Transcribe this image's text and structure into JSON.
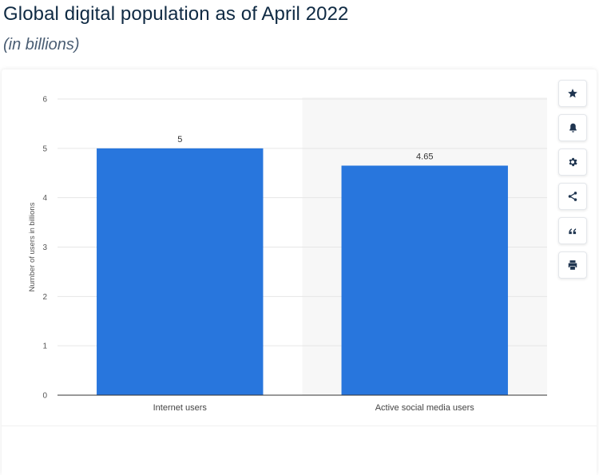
{
  "header": {
    "title": "Global digital population as of April 2022",
    "subtitle": "(in billions)"
  },
  "toolbar": {
    "buttons": [
      {
        "icon": "star-icon"
      },
      {
        "icon": "bell-icon"
      },
      {
        "icon": "gear-icon"
      },
      {
        "icon": "share-icon"
      },
      {
        "icon": "quote-icon"
      },
      {
        "icon": "print-icon"
      }
    ]
  },
  "colors": {
    "bar": "#2876dd",
    "title": "#0f2a43",
    "highlight_band": "#f7f7f7",
    "grid": "#e6e6e6",
    "toolbar_icon": "#1f3550"
  },
  "chart_data": {
    "type": "bar",
    "categories": [
      "Internet users",
      "Active social media users"
    ],
    "values": [
      5,
      4.65
    ],
    "data_labels": [
      "5",
      "4.65"
    ],
    "title": "Global digital population as of April 2022",
    "subtitle": "(in billions)",
    "xlabel": "",
    "ylabel": "Number of users in billions",
    "ylim": [
      0,
      6
    ],
    "yticks": [
      0,
      1,
      2,
      3,
      4,
      5,
      6
    ],
    "grid": true,
    "highlighted_category": "Active social media users"
  }
}
